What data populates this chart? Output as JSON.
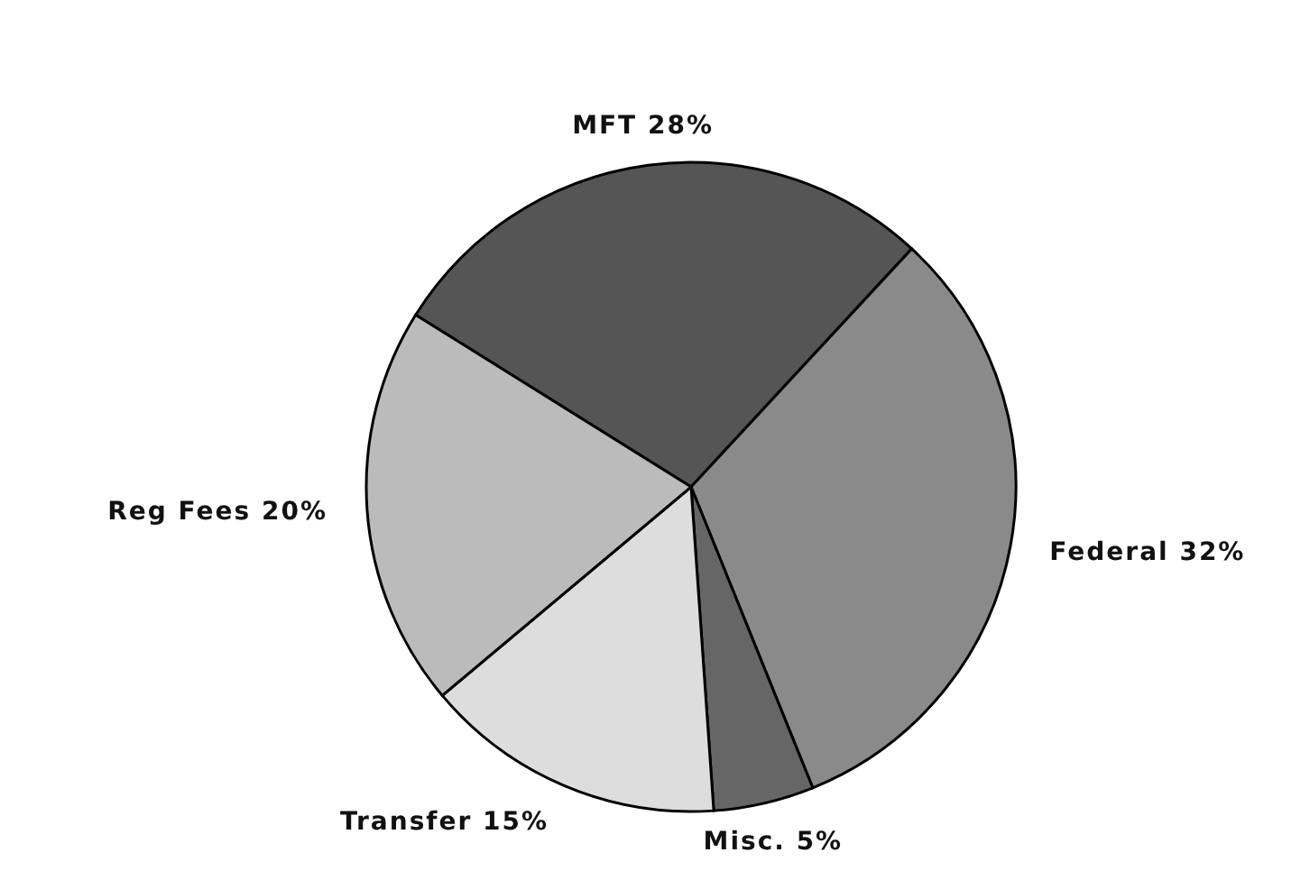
{
  "chart_data": {
    "type": "pie",
    "categories": [
      "MFT",
      "Federal",
      "Misc.",
      "Transfer",
      "Reg Fees"
    ],
    "values": [
      28,
      32,
      5,
      15,
      20
    ],
    "value_labels": [
      "28%",
      "32%",
      "5%",
      "15%",
      "20%"
    ],
    "colors": [
      "#555555",
      "#8a8a8a",
      "#666666",
      "#dddddd",
      "#bbbbbb"
    ]
  }
}
